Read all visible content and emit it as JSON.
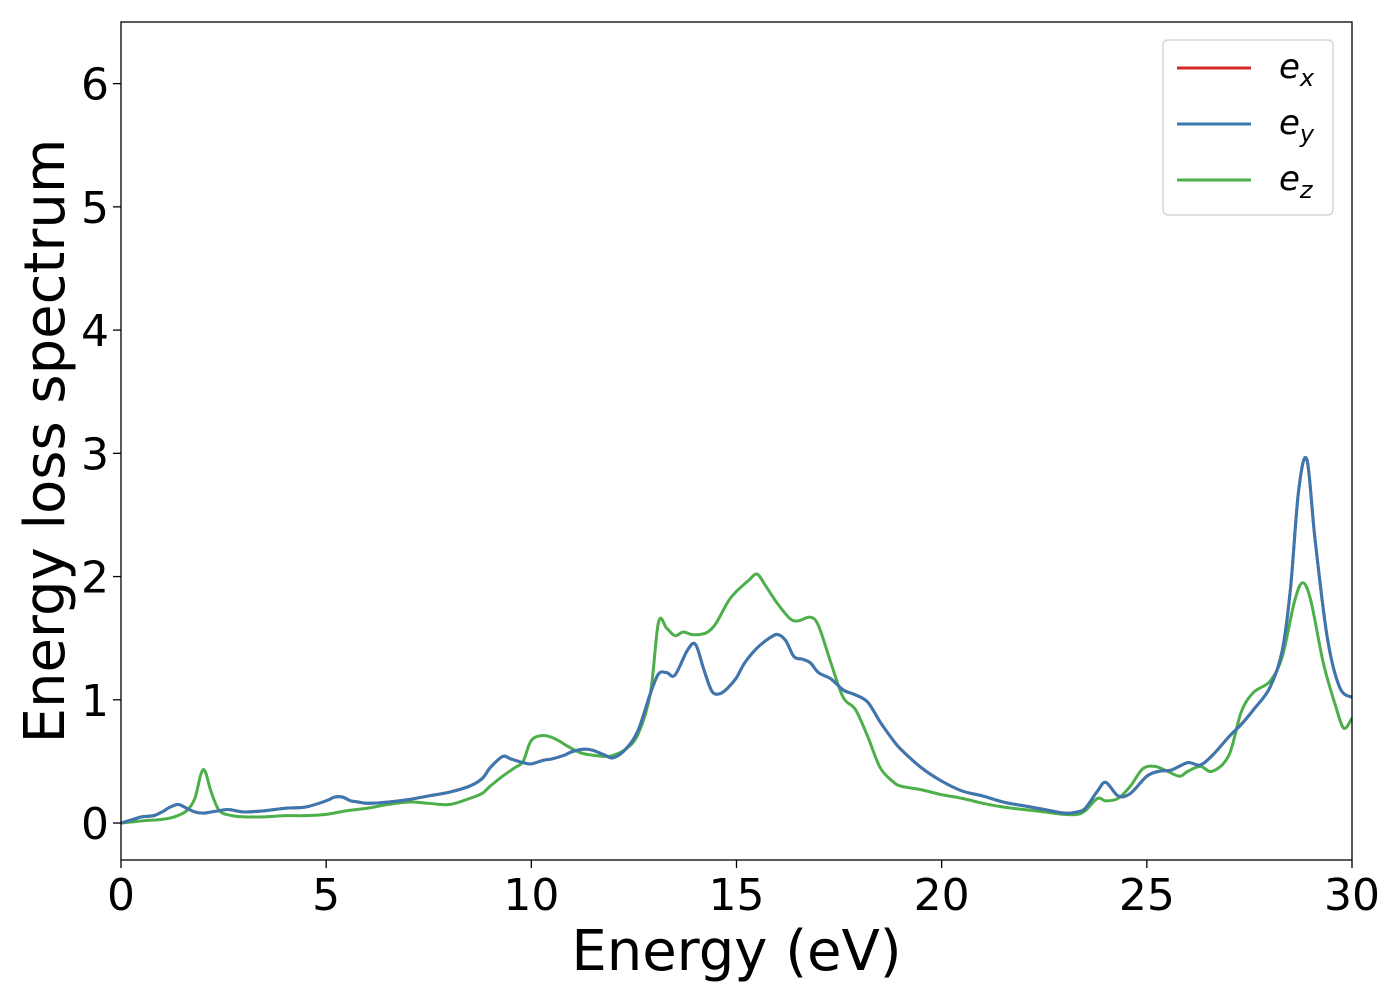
{
  "chart_data": {
    "type": "line",
    "xlabel": "Energy (eV)",
    "ylabel": "Energy loss spectrum",
    "xlim": [
      0,
      30
    ],
    "ylim": [
      -0.3,
      6.5
    ],
    "xticks": [
      0,
      5,
      10,
      15,
      20,
      25,
      30
    ],
    "xtick_labels": [
      "0",
      "5",
      "10",
      "15",
      "20",
      "25",
      "30"
    ],
    "yticks": [
      0,
      1,
      2,
      3,
      4,
      5,
      6
    ],
    "ytick_labels": [
      "0",
      "1",
      "2",
      "3",
      "4",
      "5",
      "6"
    ],
    "grid": false,
    "legend_position": "top-right",
    "series": [
      {
        "name": "e",
        "subscript": "x",
        "color": "#d62728",
        "x": [
          0,
          0.3,
          0.5,
          0.8,
          1.0,
          1.2,
          1.4,
          1.6,
          1.8,
          2.0,
          2.2,
          2.4,
          2.6,
          2.8,
          3.0,
          3.5,
          4.0,
          4.5,
          5.0,
          5.2,
          5.4,
          5.6,
          5.8,
          6.0,
          6.5,
          7.0,
          7.5,
          8.0,
          8.5,
          8.8,
          9.0,
          9.3,
          9.5,
          9.8,
          10.0,
          10.3,
          10.5,
          10.8,
          11.0,
          11.3,
          11.5,
          11.8,
          12.0,
          12.3,
          12.6,
          12.9,
          13.1,
          13.3,
          13.5,
          13.8,
          14.0,
          14.2,
          14.4,
          14.6,
          14.8,
          15.0,
          15.2,
          15.5,
          15.8,
          16.0,
          16.2,
          16.4,
          16.6,
          16.8,
          17.0,
          17.3,
          17.6,
          17.9,
          18.2,
          18.5,
          18.8,
          19.0,
          19.5,
          20.0,
          20.5,
          21.0,
          21.5,
          22.0,
          22.5,
          23.0,
          23.3,
          23.5,
          23.8,
          24.0,
          24.3,
          24.6,
          25.0,
          25.3,
          25.6,
          26.0,
          26.3,
          26.6,
          27.0,
          27.3,
          27.6,
          28.0,
          28.3,
          28.5,
          28.7,
          28.9,
          29.1,
          29.4,
          29.7,
          30.0
        ],
        "y": [
          0,
          0.03,
          0.05,
          0.06,
          0.09,
          0.13,
          0.15,
          0.12,
          0.09,
          0.08,
          0.09,
          0.1,
          0.11,
          0.1,
          0.09,
          0.1,
          0.12,
          0.13,
          0.18,
          0.21,
          0.21,
          0.18,
          0.17,
          0.16,
          0.17,
          0.19,
          0.22,
          0.25,
          0.3,
          0.36,
          0.45,
          0.54,
          0.52,
          0.49,
          0.48,
          0.51,
          0.52,
          0.55,
          0.58,
          0.6,
          0.59,
          0.55,
          0.53,
          0.6,
          0.75,
          1.05,
          1.21,
          1.22,
          1.2,
          1.4,
          1.45,
          1.25,
          1.07,
          1.05,
          1.1,
          1.18,
          1.3,
          1.42,
          1.5,
          1.53,
          1.48,
          1.35,
          1.33,
          1.3,
          1.22,
          1.17,
          1.08,
          1.04,
          0.98,
          0.82,
          0.68,
          0.6,
          0.45,
          0.34,
          0.26,
          0.22,
          0.17,
          0.14,
          0.11,
          0.08,
          0.09,
          0.12,
          0.26,
          0.33,
          0.22,
          0.24,
          0.38,
          0.42,
          0.43,
          0.49,
          0.47,
          0.55,
          0.7,
          0.8,
          0.92,
          1.1,
          1.4,
          1.9,
          2.7,
          2.95,
          2.3,
          1.5,
          1.1,
          1.02
        ]
      },
      {
        "name": "e",
        "subscript": "y",
        "color": "#3a78b2",
        "x": [
          0,
          0.3,
          0.5,
          0.8,
          1.0,
          1.2,
          1.4,
          1.6,
          1.8,
          2.0,
          2.2,
          2.4,
          2.6,
          2.8,
          3.0,
          3.5,
          4.0,
          4.5,
          5.0,
          5.2,
          5.4,
          5.6,
          5.8,
          6.0,
          6.5,
          7.0,
          7.5,
          8.0,
          8.5,
          8.8,
          9.0,
          9.3,
          9.5,
          9.8,
          10.0,
          10.3,
          10.5,
          10.8,
          11.0,
          11.3,
          11.5,
          11.8,
          12.0,
          12.3,
          12.6,
          12.9,
          13.1,
          13.3,
          13.5,
          13.8,
          14.0,
          14.2,
          14.4,
          14.6,
          14.8,
          15.0,
          15.2,
          15.5,
          15.8,
          16.0,
          16.2,
          16.4,
          16.6,
          16.8,
          17.0,
          17.3,
          17.6,
          17.9,
          18.2,
          18.5,
          18.8,
          19.0,
          19.5,
          20.0,
          20.5,
          21.0,
          21.5,
          22.0,
          22.5,
          23.0,
          23.3,
          23.5,
          23.8,
          24.0,
          24.3,
          24.6,
          25.0,
          25.3,
          25.6,
          26.0,
          26.3,
          26.6,
          27.0,
          27.3,
          27.6,
          28.0,
          28.3,
          28.5,
          28.7,
          28.9,
          29.1,
          29.4,
          29.7,
          30.0
        ],
        "y": [
          0,
          0.03,
          0.05,
          0.06,
          0.09,
          0.13,
          0.15,
          0.12,
          0.09,
          0.08,
          0.09,
          0.1,
          0.11,
          0.1,
          0.09,
          0.1,
          0.12,
          0.13,
          0.18,
          0.21,
          0.21,
          0.18,
          0.17,
          0.16,
          0.17,
          0.19,
          0.22,
          0.25,
          0.3,
          0.36,
          0.45,
          0.54,
          0.52,
          0.49,
          0.48,
          0.51,
          0.52,
          0.55,
          0.58,
          0.6,
          0.59,
          0.55,
          0.53,
          0.6,
          0.75,
          1.05,
          1.21,
          1.22,
          1.2,
          1.4,
          1.45,
          1.25,
          1.07,
          1.05,
          1.1,
          1.18,
          1.3,
          1.42,
          1.5,
          1.53,
          1.48,
          1.35,
          1.33,
          1.3,
          1.22,
          1.17,
          1.08,
          1.04,
          0.98,
          0.82,
          0.68,
          0.6,
          0.45,
          0.34,
          0.26,
          0.22,
          0.17,
          0.14,
          0.11,
          0.08,
          0.09,
          0.12,
          0.26,
          0.33,
          0.22,
          0.24,
          0.38,
          0.42,
          0.43,
          0.49,
          0.47,
          0.55,
          0.7,
          0.8,
          0.92,
          1.1,
          1.4,
          1.9,
          2.7,
          2.95,
          2.3,
          1.5,
          1.1,
          1.02
        ]
      },
      {
        "name": "e",
        "subscript": "z",
        "color": "#4daf4a",
        "x": [
          0,
          0.3,
          0.6,
          1.0,
          1.3,
          1.6,
          1.8,
          1.95,
          2.05,
          2.2,
          2.4,
          2.7,
          3.0,
          3.5,
          4.0,
          4.5,
          5.0,
          5.5,
          6.0,
          6.5,
          7.0,
          7.5,
          8.0,
          8.5,
          8.8,
          9.0,
          9.3,
          9.6,
          9.8,
          10.0,
          10.3,
          10.6,
          10.9,
          11.2,
          11.5,
          11.8,
          12.0,
          12.3,
          12.6,
          12.9,
          13.1,
          13.3,
          13.5,
          13.7,
          13.9,
          14.1,
          14.3,
          14.5,
          14.8,
          15.0,
          15.3,
          15.5,
          15.7,
          16.0,
          16.3,
          16.5,
          16.8,
          17.0,
          17.3,
          17.6,
          17.9,
          18.2,
          18.5,
          18.8,
          19.0,
          19.5,
          20.0,
          20.5,
          21.0,
          21.5,
          22.0,
          22.5,
          23.0,
          23.3,
          23.5,
          23.8,
          24.0,
          24.3,
          24.6,
          24.9,
          25.2,
          25.5,
          25.8,
          26.0,
          26.3,
          26.6,
          27.0,
          27.3,
          27.6,
          28.0,
          28.3,
          28.6,
          28.8,
          29.0,
          29.3,
          29.6,
          29.8,
          30.0
        ],
        "y": [
          0,
          0.01,
          0.02,
          0.03,
          0.05,
          0.1,
          0.2,
          0.4,
          0.42,
          0.25,
          0.1,
          0.06,
          0.05,
          0.05,
          0.06,
          0.06,
          0.07,
          0.1,
          0.12,
          0.15,
          0.17,
          0.16,
          0.15,
          0.2,
          0.24,
          0.3,
          0.38,
          0.45,
          0.5,
          0.67,
          0.71,
          0.68,
          0.62,
          0.57,
          0.55,
          0.54,
          0.55,
          0.6,
          0.72,
          1.05,
          1.63,
          1.58,
          1.52,
          1.55,
          1.53,
          1.53,
          1.55,
          1.62,
          1.8,
          1.88,
          1.97,
          2.02,
          1.93,
          1.78,
          1.66,
          1.64,
          1.67,
          1.6,
          1.3,
          1.02,
          0.92,
          0.7,
          0.45,
          0.34,
          0.3,
          0.27,
          0.23,
          0.2,
          0.16,
          0.13,
          0.11,
          0.09,
          0.07,
          0.07,
          0.1,
          0.2,
          0.18,
          0.2,
          0.3,
          0.44,
          0.46,
          0.42,
          0.38,
          0.42,
          0.46,
          0.42,
          0.55,
          0.9,
          1.06,
          1.15,
          1.35,
          1.8,
          1.95,
          1.8,
          1.3,
          0.95,
          0.77,
          0.85
        ]
      }
    ]
  }
}
